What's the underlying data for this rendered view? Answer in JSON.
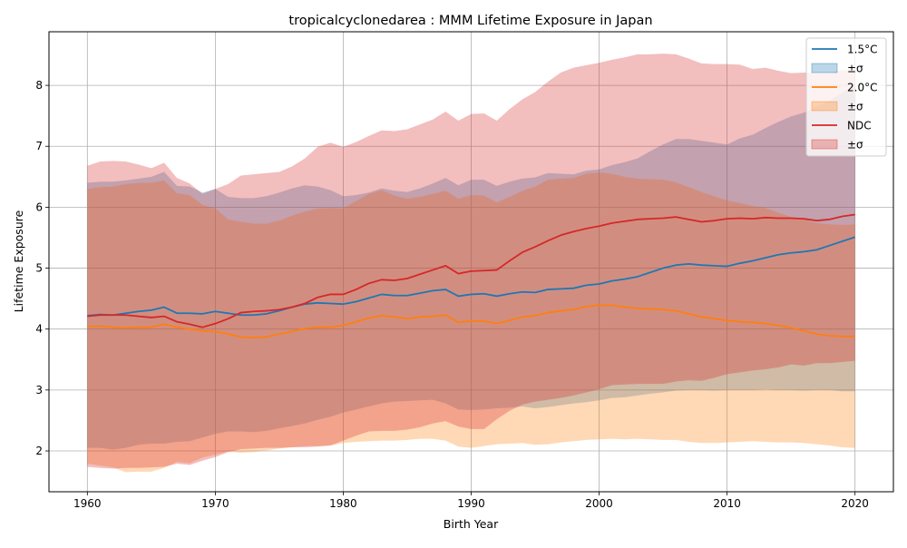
{
  "chart_data": {
    "type": "line",
    "title": "tropicalcyclonedarea : MMM Lifetime Exposure in Japan",
    "xlabel": "Birth Year",
    "ylabel": "Lifetime Exposure",
    "xlim": [
      1957,
      2023
    ],
    "ylim": [
      1.33,
      8.88
    ],
    "xticks": [
      1960,
      1970,
      1980,
      1990,
      2000,
      2010,
      2020
    ],
    "yticks": [
      2,
      3,
      4,
      5,
      6,
      7,
      8
    ],
    "grid": true,
    "legend_position": "top-right",
    "x": [
      1960,
      1961,
      1962,
      1963,
      1964,
      1965,
      1966,
      1967,
      1968,
      1969,
      1970,
      1971,
      1972,
      1973,
      1974,
      1975,
      1976,
      1977,
      1978,
      1979,
      1980,
      1981,
      1982,
      1983,
      1984,
      1985,
      1986,
      1987,
      1988,
      1989,
      1990,
      1991,
      1992,
      1993,
      1994,
      1995,
      1996,
      1997,
      1998,
      1999,
      2000,
      2001,
      2002,
      2003,
      2004,
      2005,
      2006,
      2007,
      2008,
      2009,
      2010,
      2011,
      2012,
      2013,
      2014,
      2015,
      2016,
      2017,
      2018,
      2019,
      2020
    ],
    "series": [
      {
        "name": "1.5°C",
        "band_label": "±σ",
        "color": "#1f77b4",
        "mean": [
          4.22,
          4.24,
          4.23,
          4.26,
          4.29,
          4.31,
          4.36,
          4.26,
          4.26,
          4.25,
          4.29,
          4.26,
          4.23,
          4.23,
          4.25,
          4.3,
          4.36,
          4.41,
          4.43,
          4.42,
          4.41,
          4.45,
          4.51,
          4.57,
          4.55,
          4.55,
          4.59,
          4.63,
          4.65,
          4.54,
          4.57,
          4.58,
          4.54,
          4.58,
          4.61,
          4.6,
          4.65,
          4.66,
          4.67,
          4.72,
          4.74,
          4.79,
          4.82,
          4.86,
          4.93,
          5.0,
          5.05,
          5.07,
          5.05,
          5.04,
          5.03,
          5.08,
          5.12,
          5.17,
          5.22,
          5.25,
          5.27,
          5.3,
          5.37,
          5.44,
          5.51
        ],
        "upper": [
          6.4,
          6.42,
          6.42,
          6.44,
          6.47,
          6.5,
          6.58,
          6.35,
          6.34,
          6.24,
          6.3,
          6.17,
          6.15,
          6.15,
          6.18,
          6.24,
          6.31,
          6.36,
          6.34,
          6.28,
          6.18,
          6.2,
          6.24,
          6.31,
          6.27,
          6.25,
          6.31,
          6.39,
          6.48,
          6.36,
          6.45,
          6.45,
          6.35,
          6.42,
          6.47,
          6.49,
          6.56,
          6.55,
          6.54,
          6.6,
          6.62,
          6.69,
          6.74,
          6.8,
          6.92,
          7.03,
          7.12,
          7.12,
          7.09,
          7.06,
          7.03,
          7.13,
          7.19,
          7.3,
          7.4,
          7.49,
          7.55,
          7.65,
          7.75,
          7.88,
          8.0
        ],
        "lower": [
          2.05,
          2.05,
          2.02,
          2.05,
          2.1,
          2.12,
          2.12,
          2.15,
          2.16,
          2.22,
          2.28,
          2.32,
          2.32,
          2.31,
          2.33,
          2.37,
          2.41,
          2.45,
          2.51,
          2.56,
          2.63,
          2.68,
          2.73,
          2.78,
          2.81,
          2.82,
          2.83,
          2.84,
          2.78,
          2.68,
          2.67,
          2.68,
          2.7,
          2.71,
          2.73,
          2.7,
          2.72,
          2.75,
          2.78,
          2.8,
          2.83,
          2.87,
          2.88,
          2.91,
          2.94,
          2.96,
          2.99,
          3.0,
          3.0,
          2.99,
          3.0,
          3.0,
          3.0,
          3.01,
          3.0,
          3.0,
          2.99,
          3.0,
          3.0,
          2.98,
          2.98
        ]
      },
      {
        "name": "2.0°C",
        "band_label": "±σ",
        "color": "#ff7f0e",
        "mean": [
          4.04,
          4.05,
          4.03,
          4.02,
          4.03,
          4.03,
          4.08,
          4.03,
          4.0,
          3.97,
          3.96,
          3.92,
          3.87,
          3.86,
          3.87,
          3.92,
          3.96,
          4.01,
          4.03,
          4.03,
          4.06,
          4.12,
          4.18,
          4.22,
          4.2,
          4.17,
          4.2,
          4.21,
          4.23,
          4.11,
          4.13,
          4.13,
          4.09,
          4.14,
          4.2,
          4.22,
          4.27,
          4.3,
          4.32,
          4.37,
          4.39,
          4.39,
          4.36,
          4.34,
          4.33,
          4.32,
          4.3,
          4.25,
          4.2,
          4.17,
          4.14,
          4.12,
          4.11,
          4.09,
          4.06,
          4.02,
          3.97,
          3.92,
          3.89,
          3.88,
          3.88
        ],
        "upper": [
          6.3,
          6.33,
          6.34,
          6.38,
          6.4,
          6.4,
          6.44,
          6.23,
          6.2,
          6.04,
          5.98,
          5.8,
          5.76,
          5.73,
          5.73,
          5.78,
          5.86,
          5.93,
          5.98,
          5.99,
          5.98,
          6.1,
          6.22,
          6.28,
          6.19,
          6.14,
          6.17,
          6.22,
          6.27,
          6.14,
          6.2,
          6.19,
          6.08,
          6.17,
          6.27,
          6.34,
          6.45,
          6.47,
          6.48,
          6.55,
          6.57,
          6.55,
          6.5,
          6.47,
          6.46,
          6.45,
          6.41,
          6.33,
          6.25,
          6.18,
          6.11,
          6.07,
          6.02,
          5.99,
          5.91,
          5.84,
          5.8,
          5.74,
          5.72,
          5.71,
          5.72
        ],
        "lower": [
          1.79,
          1.76,
          1.73,
          1.65,
          1.66,
          1.66,
          1.72,
          1.82,
          1.8,
          1.89,
          1.94,
          1.99,
          1.97,
          1.98,
          2.01,
          2.04,
          2.06,
          2.08,
          2.08,
          2.09,
          2.13,
          2.15,
          2.16,
          2.17,
          2.17,
          2.18,
          2.2,
          2.2,
          2.17,
          2.07,
          2.05,
          2.08,
          2.11,
          2.12,
          2.13,
          2.1,
          2.11,
          2.14,
          2.16,
          2.18,
          2.19,
          2.2,
          2.19,
          2.2,
          2.19,
          2.18,
          2.18,
          2.15,
          2.13,
          2.13,
          2.14,
          2.15,
          2.16,
          2.15,
          2.14,
          2.14,
          2.13,
          2.11,
          2.09,
          2.06,
          2.05
        ]
      },
      {
        "name": "NDC",
        "band_label": "±σ",
        "color": "#d62728",
        "mean": [
          4.21,
          4.23,
          4.23,
          4.23,
          4.21,
          4.19,
          4.21,
          4.12,
          4.08,
          4.03,
          4.09,
          4.17,
          4.27,
          4.29,
          4.3,
          4.32,
          4.36,
          4.42,
          4.52,
          4.57,
          4.57,
          4.65,
          4.75,
          4.81,
          4.8,
          4.83,
          4.9,
          4.97,
          5.04,
          4.91,
          4.95,
          4.96,
          4.97,
          5.12,
          5.26,
          5.35,
          5.45,
          5.54,
          5.6,
          5.65,
          5.69,
          5.74,
          5.77,
          5.8,
          5.81,
          5.82,
          5.84,
          5.8,
          5.76,
          5.78,
          5.81,
          5.82,
          5.81,
          5.83,
          5.82,
          5.82,
          5.81,
          5.78,
          5.8,
          5.85,
          5.88
        ],
        "upper": [
          6.68,
          6.75,
          6.76,
          6.75,
          6.7,
          6.64,
          6.73,
          6.48,
          6.39,
          6.22,
          6.3,
          6.38,
          6.52,
          6.54,
          6.56,
          6.58,
          6.67,
          6.8,
          6.99,
          7.06,
          6.99,
          7.07,
          7.17,
          7.26,
          7.25,
          7.28,
          7.36,
          7.44,
          7.57,
          7.42,
          7.53,
          7.54,
          7.42,
          7.61,
          7.77,
          7.89,
          8.06,
          8.21,
          8.29,
          8.33,
          8.37,
          8.42,
          8.46,
          8.51,
          8.51,
          8.52,
          8.51,
          8.44,
          8.36,
          8.35,
          8.35,
          8.34,
          8.27,
          8.29,
          8.24,
          8.2,
          8.21,
          8.21,
          8.21,
          8.25,
          8.25
        ],
        "lower": [
          1.74,
          1.72,
          1.71,
          1.72,
          1.72,
          1.73,
          1.74,
          1.79,
          1.77,
          1.84,
          1.9,
          1.98,
          2.03,
          2.04,
          2.05,
          2.05,
          2.06,
          2.06,
          2.07,
          2.09,
          2.17,
          2.25,
          2.32,
          2.33,
          2.33,
          2.35,
          2.39,
          2.45,
          2.49,
          2.4,
          2.36,
          2.36,
          2.52,
          2.66,
          2.76,
          2.81,
          2.84,
          2.87,
          2.91,
          2.96,
          3.01,
          3.08,
          3.09,
          3.1,
          3.1,
          3.1,
          3.14,
          3.16,
          3.15,
          3.2,
          3.26,
          3.29,
          3.32,
          3.34,
          3.37,
          3.42,
          3.4,
          3.44,
          3.44,
          3.46,
          3.48
        ]
      }
    ]
  }
}
